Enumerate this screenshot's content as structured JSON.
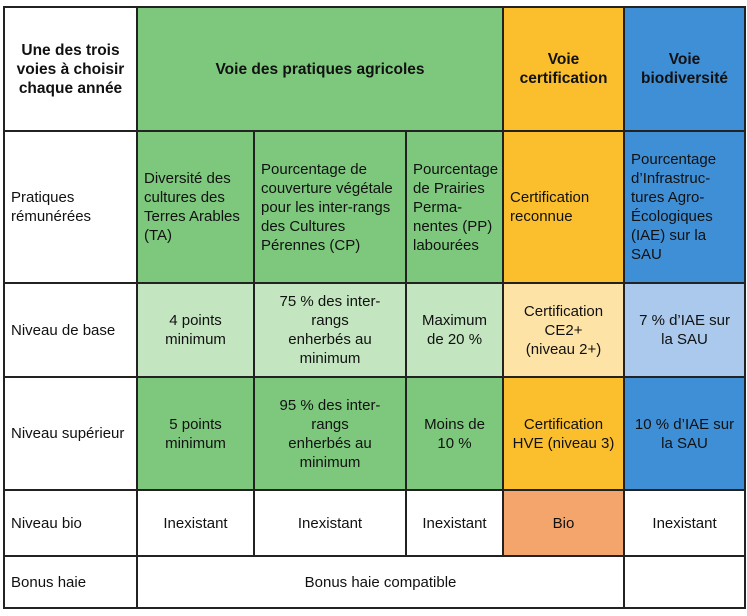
{
  "header": {
    "corner": "Une des trois\nvoies à choisir\nchaque année",
    "voie_pratiques": "Voie des pratiques agricoles",
    "voie_certification": "Voie\ncertification",
    "voie_biodiversite": "Voie\nbiodiversité"
  },
  "rows": {
    "pratiques": {
      "label": "Pratiques\nrémunérées",
      "ta": "Diversité des\ncultures des\nTerres Arables\n(TA)",
      "cp": "Pourcentage de\ncouverture végétale\npour les inter-rangs\ndes Cultures\nPérennes (CP)",
      "pp": "Pourcentage\nde Prairies\nPerma-\nnentes (PP)\nlabourées",
      "cert": "Certification\nreconnue",
      "bio": "Pourcentage\nd’Infrastruc-\ntures Agro-\nÉcologiques\n(IAE) sur la SAU"
    },
    "base": {
      "label": "Niveau de base",
      "ta": "4 points\nminimum",
      "cp": "75 % des inter-rangs\nenherbés au\nminimum",
      "pp": "Maximum\nde 20 %",
      "cert": "Certification\nCE2+\n(niveau 2+)",
      "bio": "7 % d’IAE sur\nla SAU"
    },
    "superieur": {
      "label": "Niveau supérieur",
      "ta": "5 points\nminimum",
      "cp": "95 % des inter-rangs\nenherbés au\nminimum",
      "pp": "Moins de\n10 %",
      "cert": "Certification\nHVE (niveau 3)",
      "bio": "10 % d’IAE sur\nla SAU"
    },
    "niveau_bio": {
      "label": "Niveau bio",
      "ta": "Inexistant",
      "cp": "Inexistant",
      "pp": "Inexistant",
      "cert": "Bio",
      "bio": "Inexistant"
    },
    "bonus": {
      "label": "Bonus haie",
      "merged": "Bonus haie compatible",
      "bio": ""
    }
  },
  "colors": {
    "green_dark": "#7ec87e",
    "green_light": "#c3e6c0",
    "yellow": "#fbbf2e",
    "yellow_light": "#fde3a6",
    "blue": "#3f8fd6",
    "blue_light": "#aac9ec",
    "orange": "#f3a56c"
  }
}
